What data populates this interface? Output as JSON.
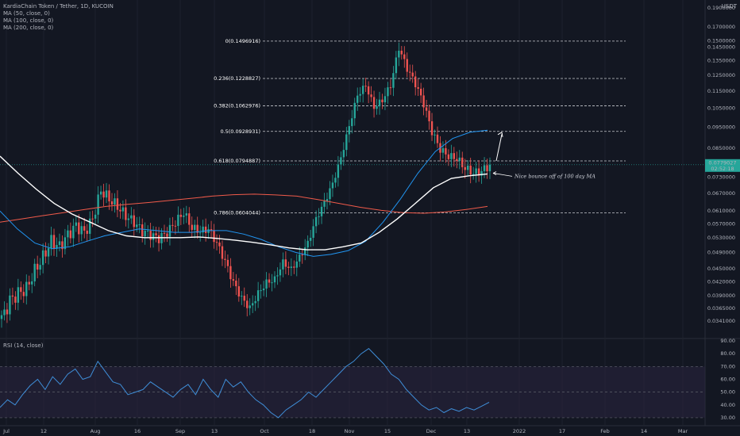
{
  "header": {
    "symbol_line": "KardiaChain Token / Tether, 1D, KUCOIN",
    "ma_lines": [
      "MA (50, close, 0)",
      "MA (100, close, 0)",
      "MA (200, close, 0)"
    ],
    "rsi_line": "RSI (14, close)",
    "currency": "USDT"
  },
  "annotation": "Nice bounce off of 100 day MA",
  "price_badge": {
    "value": "0.0779027",
    "countdown": "02:52:18"
  },
  "colors": {
    "background": "#131722",
    "up": "#26a69a",
    "down": "#ef5350",
    "ma50": "#2196f3",
    "ma100": "#ffffff",
    "ma200": "#f05a4a",
    "rsi": "#3f8ed8",
    "rsi_band": "#2a2540"
  },
  "chart_data": [
    {
      "type": "line",
      "title": "KardiaChain Token / Tether, 1D, KUCOIN",
      "y_scale": "log",
      "ylim": [
        0.0315,
        0.1829
      ],
      "ytick_labels": [
        "0.1900000",
        "0.1700000",
        "0.1500000",
        "0.1450000",
        "0.1350000",
        "0.1250000",
        "0.1150000",
        "0.1050000",
        "0.0950000",
        "0.0850000",
        "0.0780000",
        "0.0730000",
        "0.0670000",
        "0.0610000",
        "0.0570000",
        "0.0530000",
        "0.0490000",
        "0.0450000",
        "0.0420000",
        "0.0390000",
        "0.0365000",
        "0.0341000"
      ],
      "xtick_labels": [
        "Jul",
        "12",
        "Aug",
        "16",
        "Sep",
        "13",
        "Oct",
        "18",
        "Nov",
        "15",
        "Dec",
        "13",
        "2022",
        "17",
        "Feb",
        "14",
        "Mar"
      ],
      "fib_levels": [
        {
          "label": "0(0.1496916)",
          "value": 0.1496916
        },
        {
          "label": "0.236(0.1228827)",
          "value": 0.1228827
        },
        {
          "label": "0.382(0.1062976)",
          "value": 0.1062976
        },
        {
          "label": "0.5(0.0928931)",
          "value": 0.0928931
        },
        {
          "label": "0.618(0.0794887)",
          "value": 0.0794887
        },
        {
          "label": "0.786(0.0604044)",
          "value": 0.0604044
        }
      ],
      "candles_close_sampled": [
        0.0345,
        0.038,
        0.0395,
        0.0405,
        0.0445,
        0.0478,
        0.052,
        0.0505,
        0.0538,
        0.0565,
        0.0545,
        0.0585,
        0.068,
        0.065,
        0.0625,
        0.0595,
        0.0575,
        0.0548,
        0.0538,
        0.0528,
        0.0545,
        0.0575,
        0.0605,
        0.0558,
        0.0548,
        0.0555,
        0.0515,
        0.0468,
        0.0418,
        0.0385,
        0.0365,
        0.0395,
        0.0418,
        0.0425,
        0.0465,
        0.0448,
        0.0478,
        0.0515,
        0.0585,
        0.0638,
        0.0705,
        0.0808,
        0.0955,
        0.1125,
        0.1185,
        0.1055,
        0.1095,
        0.1185,
        0.1445,
        0.1295,
        0.1195,
        0.1075,
        0.0928,
        0.0845,
        0.0815,
        0.0805,
        0.0765,
        0.0745,
        0.0753,
        0.0779
      ],
      "series": [
        {
          "name": "MA (50, close, 0)",
          "values": [
            0.061,
            0.0555,
            0.0515,
            0.05,
            0.0505,
            0.052,
            0.0535,
            0.0545,
            0.0555,
            0.055,
            0.0545,
            0.0545,
            0.055,
            0.055,
            0.054,
            0.0525,
            0.0505,
            0.049,
            0.048,
            0.0485,
            0.0495,
            0.052,
            0.0575,
            0.065,
            0.0745,
            0.0835,
            0.0895,
            0.0925,
            0.0935
          ]
        },
        {
          "name": "MA (100, close, 0)",
          "values": [
            0.0815,
            0.0745,
            0.0685,
            0.0635,
            0.06,
            0.0575,
            0.055,
            0.0535,
            0.053,
            0.053,
            0.053,
            0.0532,
            0.0528,
            0.0523,
            0.0517,
            0.051,
            0.0502,
            0.0497,
            0.0497,
            0.0505,
            0.0515,
            0.0545,
            0.0585,
            0.0635,
            0.069,
            0.0725,
            0.0735,
            0.0742
          ]
        },
        {
          "name": "MA (200, close, 0)",
          "values": [
            0.0575,
            0.0585,
            0.0595,
            0.0605,
            0.0615,
            0.0625,
            0.0632,
            0.0638,
            0.0645,
            0.0652,
            0.066,
            0.0665,
            0.0667,
            0.0664,
            0.066,
            0.0648,
            0.0635,
            0.0622,
            0.0612,
            0.0605,
            0.0603,
            0.0607,
            0.0615,
            0.0625
          ]
        }
      ]
    },
    {
      "type": "line",
      "title": "RSI (14, close)",
      "ylim": [
        25,
        90
      ],
      "ytick_labels": [
        "90.00",
        "80.00",
        "70.00",
        "60.00",
        "50.00",
        "40.00",
        "30.00"
      ],
      "band": [
        30,
        70
      ],
      "series": [
        {
          "name": "RSI (14, close)",
          "values": [
            38,
            44,
            40,
            48,
            55,
            60,
            52,
            62,
            56,
            64,
            68,
            60,
            62,
            74,
            66,
            58,
            56,
            48,
            50,
            52,
            58,
            54,
            50,
            46,
            52,
            56,
            48,
            60,
            52,
            46,
            60,
            54,
            58,
            50,
            44,
            40,
            34,
            30,
            36,
            40,
            44,
            50,
            46,
            52,
            58,
            64,
            70,
            74,
            80,
            84,
            78,
            72,
            64,
            60,
            52,
            46,
            40,
            36,
            38,
            34,
            37,
            35,
            38,
            36,
            39,
            42
          ]
        }
      ]
    }
  ]
}
